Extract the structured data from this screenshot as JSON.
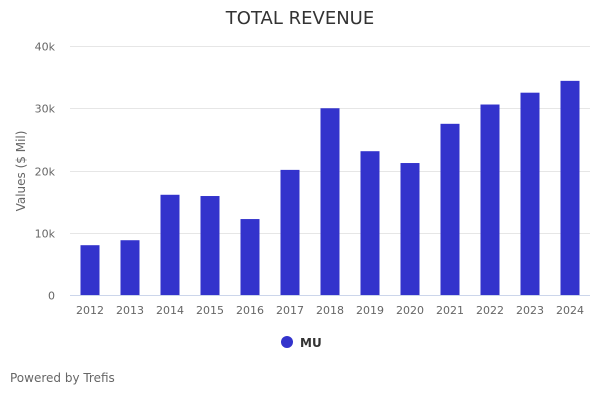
{
  "chart_data": {
    "type": "bar",
    "title": "TOTAL REVENUE",
    "xlabel": "",
    "ylabel": "Values ($ Mil)",
    "ylim": [
      0,
      40000
    ],
    "yticks": [
      0,
      10000,
      20000,
      30000,
      40000
    ],
    "ytick_labels": [
      "0",
      "10k",
      "20k",
      "30k",
      "40k"
    ],
    "grid": true,
    "categories": [
      "2012",
      "2013",
      "2014",
      "2015",
      "2016",
      "2017",
      "2018",
      "2019",
      "2020",
      "2021",
      "2022",
      "2023",
      "2024"
    ],
    "series": [
      {
        "name": "MU",
        "color": "#3333cc",
        "values": [
          8000,
          8800,
          16100,
          15900,
          12200,
          20100,
          30000,
          23100,
          21200,
          27500,
          30600,
          32500,
          34400
        ]
      }
    ],
    "legend_position": "bottom-center"
  },
  "credit": "Powered by Trefis"
}
